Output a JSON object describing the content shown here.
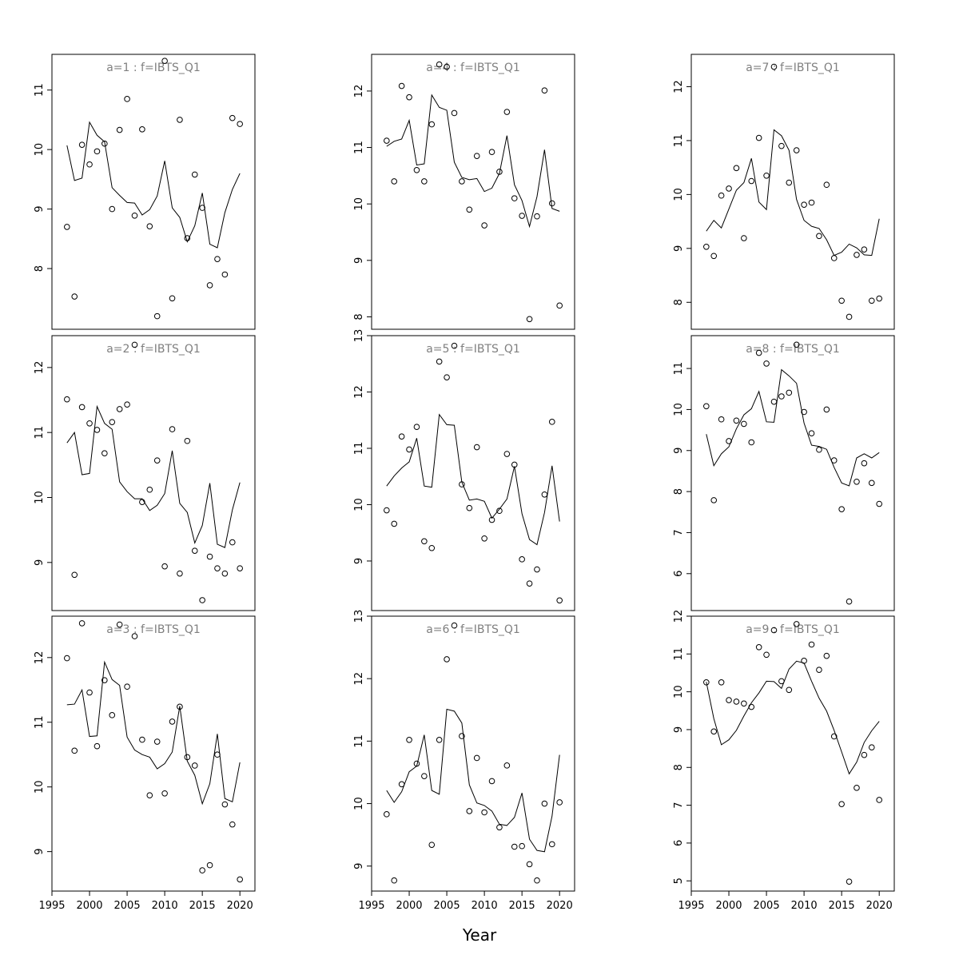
{
  "figure": {
    "xlabel": "Year"
  },
  "chart_data": [
    {
      "type": "scatter",
      "title": "a=1 : f=IBTS_Q1",
      "x": [
        1997,
        1998,
        1999,
        2000,
        2001,
        2002,
        2003,
        2004,
        2005,
        2006,
        2007,
        2008,
        2009,
        2010,
        2011,
        2012,
        2013,
        2014,
        2015,
        2016,
        2017,
        2018,
        2019,
        2020
      ],
      "series": [
        {
          "kind": "points",
          "values": [
            8.7,
            7.53,
            10.08,
            9.75,
            9.97,
            10.1,
            9.0,
            10.33,
            10.85,
            8.89,
            10.34,
            8.71,
            7.2,
            11.49,
            7.5,
            10.5,
            8.51,
            9.58,
            9.02,
            7.72,
            8.16,
            7.9,
            10.53,
            10.43
          ]
        },
        {
          "kind": "line",
          "values": [
            10.07,
            9.48,
            9.52,
            10.46,
            10.24,
            10.13,
            9.36,
            9.23,
            9.11,
            9.1,
            8.9,
            8.99,
            9.22,
            9.81,
            9.02,
            8.86,
            8.45,
            8.72,
            9.27,
            8.41,
            8.35,
            8.94,
            9.33,
            9.6
          ]
        }
      ],
      "yticks": [
        8,
        9,
        10,
        11
      ],
      "xticks": [],
      "ylim": [
        6.98,
        11.6
      ]
    },
    {
      "type": "scatter",
      "title": "a=4 : f=IBTS_Q1",
      "x": [
        1997,
        1998,
        1999,
        2000,
        2001,
        2002,
        2003,
        2004,
        2005,
        2006,
        2007,
        2008,
        2009,
        2010,
        2011,
        2012,
        2013,
        2014,
        2015,
        2016,
        2017,
        2018,
        2019,
        2020
      ],
      "series": [
        {
          "kind": "points",
          "values": [
            11.12,
            10.4,
            12.09,
            11.89,
            10.6,
            10.4,
            11.41,
            12.47,
            12.43,
            11.61,
            10.4,
            9.9,
            10.85,
            9.62,
            10.92,
            10.57,
            11.63,
            10.1,
            9.79,
            7.96,
            9.78,
            12.01,
            10.01,
            8.2
          ]
        },
        {
          "kind": "line",
          "values": [
            11.02,
            11.11,
            11.15,
            11.48,
            10.69,
            10.71,
            11.93,
            11.71,
            11.66,
            10.74,
            10.47,
            10.43,
            10.45,
            10.22,
            10.28,
            10.54,
            11.21,
            10.34,
            10.06,
            9.6,
            10.13,
            10.96,
            9.92,
            9.87
          ]
        }
      ],
      "yticks": [
        8,
        9,
        10,
        11,
        12
      ],
      "xticks": [],
      "ylim": [
        7.78,
        12.65
      ]
    },
    {
      "type": "scatter",
      "title": "a=7 : f=IBTS_Q1",
      "x": [
        1997,
        1998,
        1999,
        2000,
        2001,
        2002,
        2003,
        2004,
        2005,
        2006,
        2007,
        2008,
        2009,
        2010,
        2011,
        2012,
        2013,
        2014,
        2015,
        2016,
        2017,
        2018,
        2019,
        2020
      ],
      "series": [
        {
          "kind": "points",
          "values": [
            9.03,
            8.86,
            9.98,
            10.11,
            10.49,
            9.19,
            10.25,
            11.05,
            10.35,
            12.37,
            10.9,
            10.22,
            10.82,
            9.81,
            9.85,
            9.23,
            10.18,
            8.82,
            8.03,
            7.73,
            8.88,
            8.98,
            8.03,
            8.07
          ]
        },
        {
          "kind": "line",
          "values": [
            9.32,
            9.52,
            9.38,
            9.73,
            10.08,
            10.22,
            10.67,
            9.86,
            9.72,
            11.2,
            11.09,
            10.82,
            9.91,
            9.52,
            9.41,
            9.37,
            9.16,
            8.87,
            8.93,
            9.08,
            9.01,
            8.88,
            8.87,
            9.55
          ]
        }
      ],
      "yticks": [
        8,
        9,
        10,
        11,
        12
      ],
      "xticks": [],
      "ylim": [
        7.5,
        12.6
      ]
    },
    {
      "type": "scatter",
      "title": "a=2 : f=IBTS_Q1",
      "x": [
        1997,
        1998,
        1999,
        2000,
        2001,
        2002,
        2003,
        2004,
        2005,
        2006,
        2007,
        2008,
        2009,
        2010,
        2011,
        2012,
        2013,
        2014,
        2015,
        2016,
        2017,
        2018,
        2019,
        2020
      ],
      "series": [
        {
          "kind": "points",
          "values": [
            11.51,
            8.81,
            11.39,
            11.14,
            11.04,
            10.68,
            11.16,
            11.36,
            11.43,
            12.35,
            9.93,
            10.12,
            10.57,
            8.94,
            11.05,
            8.83,
            10.87,
            9.18,
            8.42,
            9.09,
            8.91,
            8.83,
            9.31,
            8.91
          ]
        },
        {
          "kind": "line",
          "values": [
            10.84,
            11.0,
            10.35,
            10.37,
            11.4,
            11.14,
            11.05,
            10.24,
            10.09,
            9.98,
            9.98,
            9.8,
            9.88,
            10.06,
            10.72,
            9.91,
            9.77,
            9.3,
            9.57,
            10.22,
            9.28,
            9.23,
            9.81,
            10.23
          ]
        }
      ],
      "yticks": [
        9,
        10,
        11,
        12
      ],
      "xticks": [],
      "ylim": [
        8.26,
        12.49
      ]
    },
    {
      "type": "scatter",
      "title": "a=5 : f=IBTS_Q1",
      "x": [
        1997,
        1998,
        1999,
        2000,
        2001,
        2002,
        2003,
        2004,
        2005,
        2006,
        2007,
        2008,
        2009,
        2010,
        2011,
        2012,
        2013,
        2014,
        2015,
        2016,
        2017,
        2018,
        2019,
        2020
      ],
      "series": [
        {
          "kind": "points",
          "values": [
            9.9,
            9.66,
            11.21,
            10.98,
            11.38,
            9.35,
            9.23,
            12.54,
            12.26,
            12.82,
            10.36,
            9.94,
            11.02,
            9.4,
            9.73,
            9.89,
            10.9,
            10.71,
            9.03,
            8.6,
            8.85,
            10.18,
            11.47,
            8.3
          ]
        },
        {
          "kind": "line",
          "values": [
            10.33,
            10.51,
            10.65,
            10.76,
            11.18,
            10.33,
            10.31,
            11.6,
            11.42,
            11.41,
            10.4,
            10.08,
            10.1,
            10.06,
            9.76,
            9.92,
            10.1,
            10.68,
            9.84,
            9.38,
            9.29,
            9.86,
            10.69,
            9.7
          ]
        }
      ],
      "yticks": [
        9,
        10,
        11,
        12,
        13
      ],
      "xticks": [],
      "ylim": [
        8.12,
        13.0
      ]
    },
    {
      "type": "scatter",
      "title": "a=8 : f=IBTS_Q1",
      "x": [
        1997,
        1998,
        1999,
        2000,
        2001,
        2002,
        2003,
        2004,
        2005,
        2006,
        2007,
        2008,
        2009,
        2010,
        2011,
        2012,
        2013,
        2014,
        2015,
        2016,
        2017,
        2018,
        2019,
        2020
      ],
      "series": [
        {
          "kind": "points",
          "values": [
            10.08,
            7.79,
            9.76,
            9.23,
            9.73,
            9.65,
            9.2,
            11.38,
            11.12,
            10.19,
            10.32,
            10.41,
            11.58,
            9.94,
            9.42,
            9.02,
            10.0,
            8.76,
            7.57,
            5.32,
            8.24,
            8.69,
            8.21,
            7.7
          ]
        },
        {
          "kind": "line",
          "values": [
            9.4,
            8.63,
            8.92,
            9.09,
            9.53,
            9.87,
            10.02,
            10.44,
            9.7,
            9.69,
            10.97,
            10.82,
            10.64,
            9.67,
            9.13,
            9.1,
            9.03,
            8.59,
            8.21,
            8.14,
            8.82,
            8.92,
            8.82,
            8.95
          ]
        }
      ],
      "yticks": [
        6,
        7,
        8,
        9,
        10,
        11
      ],
      "xticks": [],
      "ylim": [
        5.1,
        11.8
      ]
    },
    {
      "type": "scatter",
      "title": "a=3 : f=IBTS_Q1",
      "x": [
        1997,
        1998,
        1999,
        2000,
        2001,
        2002,
        2003,
        2004,
        2005,
        2006,
        2007,
        2008,
        2009,
        2010,
        2011,
        2012,
        2013,
        2014,
        2015,
        2016,
        2017,
        2018,
        2019,
        2020
      ],
      "series": [
        {
          "kind": "points",
          "values": [
            11.99,
            10.56,
            12.53,
            11.46,
            10.63,
            11.65,
            11.11,
            12.51,
            11.55,
            12.33,
            10.73,
            9.87,
            10.7,
            9.9,
            11.01,
            11.24,
            10.46,
            10.33,
            8.71,
            8.79,
            10.5,
            9.73,
            9.42,
            8.57
          ]
        },
        {
          "kind": "line",
          "values": [
            11.27,
            11.28,
            11.5,
            10.78,
            10.79,
            11.93,
            11.66,
            11.57,
            10.77,
            10.57,
            10.5,
            10.46,
            10.28,
            10.36,
            10.54,
            11.25,
            10.4,
            10.18,
            9.74,
            10.05,
            10.82,
            9.82,
            9.77,
            10.38
          ]
        }
      ],
      "yticks": [
        9,
        10,
        11,
        12
      ],
      "xticks": [
        1995,
        2000,
        2005,
        2010,
        2015,
        2020
      ],
      "ylim": [
        8.39,
        12.64
      ]
    },
    {
      "type": "scatter",
      "title": "a=6 : f=IBTS_Q1",
      "x": [
        1997,
        1998,
        1999,
        2000,
        2001,
        2002,
        2003,
        2004,
        2005,
        2006,
        2007,
        2008,
        2009,
        2010,
        2011,
        2012,
        2013,
        2014,
        2015,
        2016,
        2017,
        2018,
        2019,
        2020
      ],
      "series": [
        {
          "kind": "points",
          "values": [
            9.83,
            8.77,
            10.31,
            11.02,
            10.64,
            10.44,
            9.34,
            11.02,
            12.31,
            12.85,
            11.08,
            9.88,
            10.73,
            9.86,
            10.36,
            9.62,
            10.61,
            9.31,
            9.32,
            9.03,
            8.77,
            10.0,
            9.35,
            10.02
          ]
        },
        {
          "kind": "line",
          "values": [
            10.21,
            10.02,
            10.19,
            10.51,
            10.6,
            11.1,
            10.21,
            10.15,
            11.51,
            11.48,
            11.29,
            10.3,
            10.01,
            9.97,
            9.88,
            9.67,
            9.65,
            9.78,
            10.17,
            9.43,
            9.25,
            9.23,
            9.8,
            10.78
          ]
        }
      ],
      "yticks": [
        9,
        10,
        11,
        12,
        13
      ],
      "xticks": [
        1995,
        2000,
        2005,
        2010,
        2015,
        2020
      ],
      "ylim": [
        8.6,
        13.0
      ]
    },
    {
      "type": "scatter",
      "title": "a=9 : f=IBTS_Q1",
      "x": [
        1997,
        1998,
        1999,
        2000,
        2001,
        2002,
        2003,
        2004,
        2005,
        2006,
        2007,
        2008,
        2009,
        2010,
        2011,
        2012,
        2013,
        2014,
        2015,
        2016,
        2017,
        2018,
        2019,
        2020
      ],
      "series": [
        {
          "kind": "points",
          "values": [
            10.25,
            8.95,
            10.25,
            9.78,
            9.74,
            9.69,
            9.6,
            11.18,
            10.98,
            11.63,
            10.28,
            10.05,
            11.79,
            10.82,
            11.25,
            10.58,
            10.95,
            8.82,
            7.03,
            4.98,
            7.46,
            8.33,
            8.53,
            7.14
          ]
        },
        {
          "kind": "line",
          "values": [
            10.26,
            9.29,
            8.6,
            8.73,
            8.98,
            9.36,
            9.71,
            9.97,
            10.28,
            10.27,
            10.09,
            10.6,
            10.81,
            10.76,
            10.28,
            9.83,
            9.49,
            8.98,
            8.41,
            7.83,
            8.14,
            8.66,
            8.97,
            9.22
          ]
        }
      ],
      "yticks": [
        5,
        6,
        7,
        8,
        9,
        10,
        11,
        12
      ],
      "xticks": [
        1995,
        2000,
        2005,
        2010,
        2015,
        2020
      ],
      "ylim": [
        4.73,
        12.0
      ]
    }
  ]
}
